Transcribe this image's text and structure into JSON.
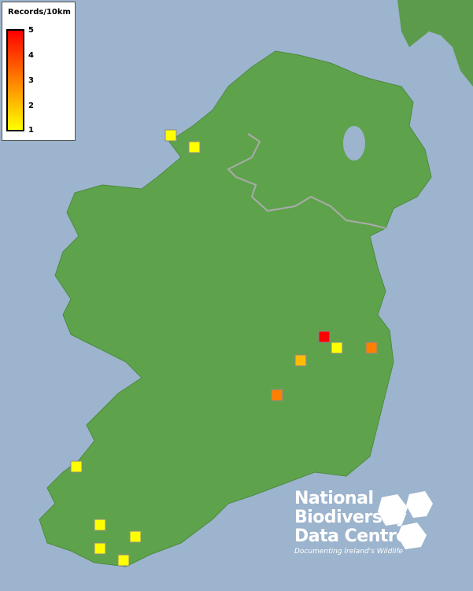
{
  "legend": {
    "title": "Records/10km",
    "ticks": [
      "5",
      "4",
      "3",
      "2",
      "1"
    ],
    "colors": {
      "max": "#ff0000",
      "mid": "#ff8000",
      "min": "#ffff00"
    }
  },
  "records": [
    {
      "value": 1,
      "color": "#ffff00"
    },
    {
      "value": 1,
      "color": "#ffff00"
    },
    {
      "value": 5,
      "color": "#ff0000"
    },
    {
      "value": 1,
      "color": "#ffff00"
    },
    {
      "value": 3,
      "color": "#ff8000"
    },
    {
      "value": 2,
      "color": "#ffbb00"
    },
    {
      "value": 3,
      "color": "#ff8000"
    },
    {
      "value": 1,
      "color": "#ffff00"
    },
    {
      "value": 1,
      "color": "#ffff00"
    },
    {
      "value": 1,
      "color": "#ffff00"
    },
    {
      "value": 1,
      "color": "#ffff00"
    },
    {
      "value": 1,
      "color": "#ffff00"
    }
  ],
  "logo": {
    "line1": "National",
    "line2": "Biodiversity",
    "line3": "Data Centre",
    "tagline": "Documenting Ireland's Wildlife"
  },
  "colors": {
    "sea": "#9cb4cd",
    "land": "#5a9e4a",
    "border": "#aaaaaa"
  }
}
